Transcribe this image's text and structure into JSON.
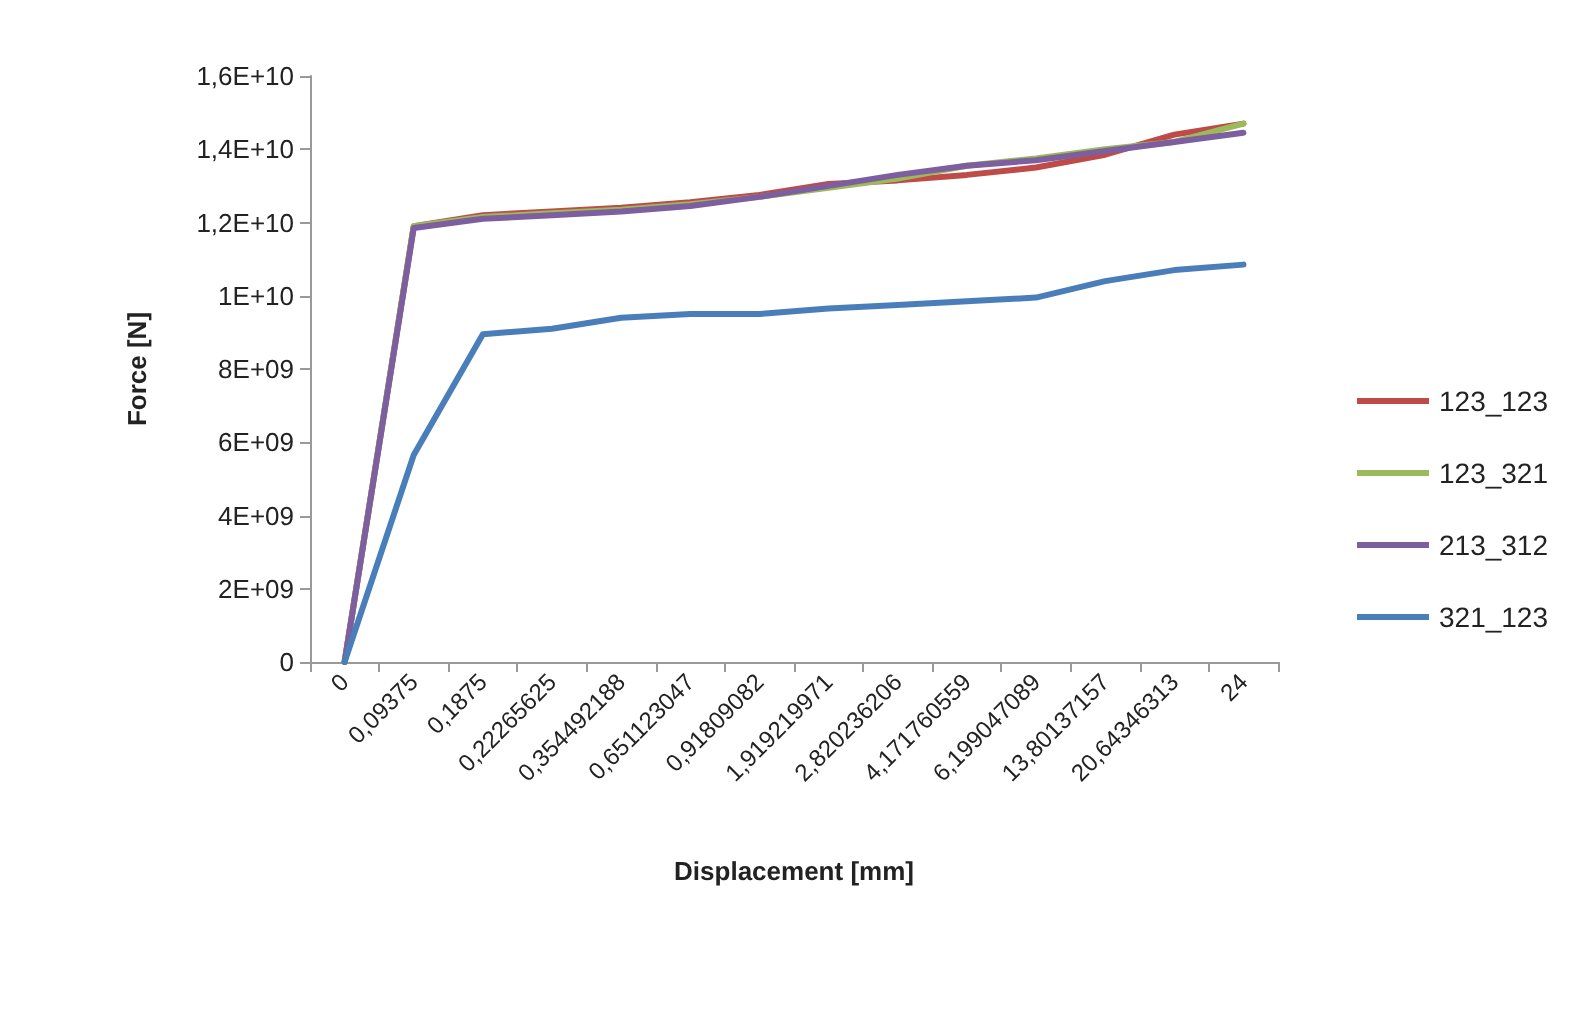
{
  "chart_data": {
    "type": "line",
    "xlabel": "Displacement [mm]",
    "ylabel": "Force [N]",
    "categories": [
      "0",
      "0,09375",
      "0,1875",
      "0,22265625",
      "0,354492188",
      "0,651123047",
      "0,91809082",
      "1,919219971",
      "2,820236206",
      "4,171760559",
      "6,199047089",
      "13,80137157",
      "20,64346313",
      "24"
    ],
    "series": [
      {
        "name": "123_123",
        "color": "#be4b48",
        "values": [
          0,
          11900000000,
          12200000000,
          12300000000,
          12400000000,
          12550000000,
          12750000000,
          13050000000,
          13150000000,
          13300000000,
          13500000000,
          13850000000,
          14400000000,
          14700000000
        ]
      },
      {
        "name": "123_321",
        "color": "#9bbb59",
        "values": [
          0,
          11900000000,
          12150000000,
          12250000000,
          12350000000,
          12500000000,
          12700000000,
          12950000000,
          13200000000,
          13550000000,
          13750000000,
          14000000000,
          14200000000,
          14700000000
        ]
      },
      {
        "name": "213_312",
        "color": "#7d5fa0",
        "values": [
          0,
          11850000000,
          12100000000,
          12200000000,
          12300000000,
          12450000000,
          12700000000,
          13000000000,
          13300000000,
          13550000000,
          13700000000,
          13950000000,
          14200000000,
          14450000000
        ]
      },
      {
        "name": "321_123",
        "color": "#4a7ebb",
        "values": [
          0,
          5650000000,
          8950000000,
          9100000000,
          9400000000,
          9500000000,
          9500000000,
          9650000000,
          9750000000,
          9850000000,
          9950000000,
          10400000000,
          10700000000,
          10850000000
        ]
      }
    ],
    "ylim": [
      0,
      16000000000
    ],
    "yticks": [
      0,
      {
        "value": 2000000000,
        "label": "2E+09"
      },
      {
        "value": 4000000000,
        "label": "4E+09"
      },
      {
        "value": 6000000000,
        "label": "6E+09"
      },
      {
        "value": 8000000000,
        "label": "8E+09"
      },
      {
        "value": 10000000000,
        "label": "1E+10"
      },
      {
        "value": 12000000000,
        "label": "1,2E+10"
      },
      {
        "value": 14000000000,
        "label": "1,4E+10"
      },
      {
        "value": 16000000000,
        "label": "1,6E+10"
      }
    ],
    "grid": false,
    "legend": "right",
    "marker": "none",
    "line_style": "solid"
  }
}
